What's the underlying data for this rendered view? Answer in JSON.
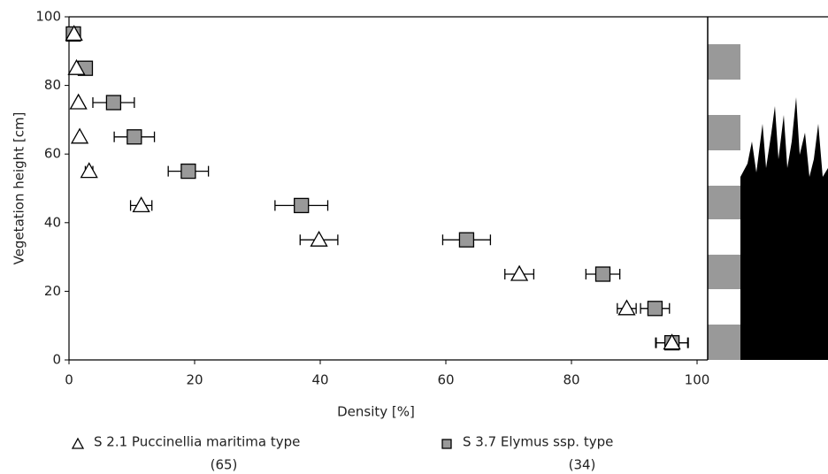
{
  "chart_data": {
    "type": "scatter",
    "x_label": "Density [%]",
    "y_label": "Vegetation height [cm]",
    "xlim": [
      0,
      102
    ],
    "ylim": [
      0,
      100
    ],
    "xticks": [
      0,
      20,
      40,
      60,
      80,
      100
    ],
    "yticks": [
      0,
      20,
      40,
      60,
      80,
      100
    ],
    "series": [
      {
        "name": "S 2.1 Puccinellia maritima type",
        "note": "(65)",
        "marker": "triangle",
        "color": "#ffffff",
        "y": [
          95,
          85,
          75,
          65,
          55,
          45,
          35,
          25,
          15,
          5
        ],
        "x": [
          0.8,
          1.2,
          1.5,
          1.7,
          3.2,
          11.5,
          39.8,
          71.7,
          88.8,
          96
        ],
        "xerr": [
          null,
          null,
          null,
          null,
          0.6,
          1.7,
          3,
          2.3,
          1.5,
          2.5
        ]
      },
      {
        "name": "S 3.7 Elymus ssp. type",
        "note": "(34)",
        "marker": "square",
        "color": "#999999",
        "y": [
          95,
          85,
          75,
          65,
          55,
          45,
          35,
          25,
          15,
          5
        ],
        "x": [
          0.7,
          2.6,
          7.1,
          10.4,
          19,
          37,
          63.3,
          85,
          93.3,
          96
        ],
        "xerr": [
          null,
          null,
          3.3,
          3.2,
          3.2,
          4.2,
          3.8,
          2.7,
          2.3,
          2.6
        ]
      }
    ]
  }
}
